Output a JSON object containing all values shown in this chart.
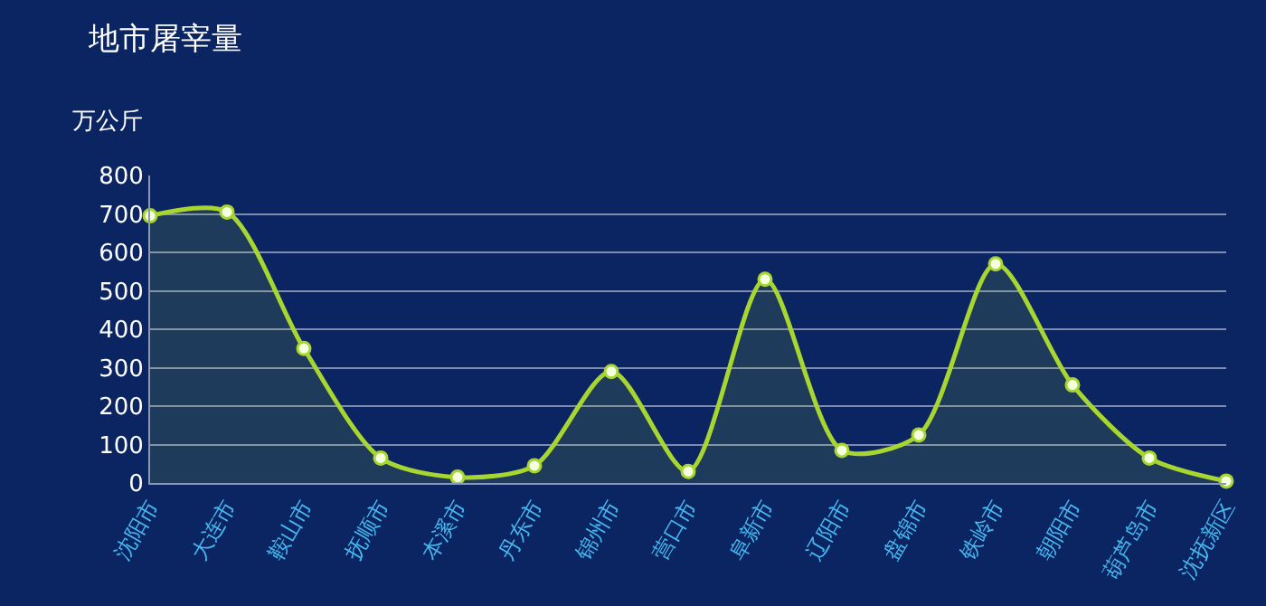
{
  "chart_data": {
    "type": "area",
    "title": "地市屠宰量",
    "ylabel": "万公斤",
    "categories": [
      "沈阳市",
      "大连市",
      "鞍山市",
      "抚顺市",
      "本溪市",
      "丹东市",
      "锦州市",
      "营口市",
      "阜新市",
      "辽阳市",
      "盘锦市",
      "铁岭市",
      "朝阳市",
      "葫芦岛市",
      "沈抚新区"
    ],
    "series": [
      {
        "color": "#a8d630",
        "values": [
          695,
          705,
          350,
          65,
          15,
          45,
          290,
          30,
          530,
          85,
          125,
          570,
          255,
          65,
          5
        ]
      }
    ],
    "ylim": [
      0,
      800
    ],
    "yticks": [
      0,
      100,
      200,
      300,
      400,
      500,
      600,
      700,
      800
    ],
    "grid": "y",
    "marker": "circle",
    "line_style": "solid",
    "legend": false
  }
}
